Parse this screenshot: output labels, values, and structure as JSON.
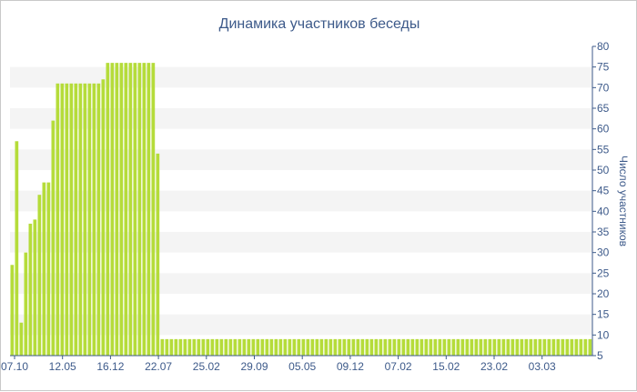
{
  "chart_data": {
    "type": "bar",
    "title": "Динамика участников беседы",
    "ylabel": "Число участников",
    "xlabel": "",
    "ylim": [
      5,
      80
    ],
    "yticks": [
      5,
      10,
      15,
      20,
      25,
      30,
      35,
      40,
      45,
      50,
      55,
      60,
      65,
      70,
      75,
      80
    ],
    "xtick_labels": [
      "07.10",
      "12.05",
      "16.12",
      "22.07",
      "25.02",
      "29.09",
      "05.05",
      "09.12",
      "07.02",
      "15.02",
      "23.02",
      "03.03"
    ],
    "grid": "horizontal bands",
    "colors": {
      "bar": "#b5dc3a",
      "band": "#f4f4f4",
      "axis": "#3d5a8a",
      "text": "#3d5a8a"
    },
    "values": [
      27,
      57,
      13,
      30,
      37,
      38,
      44,
      47,
      47,
      62,
      71,
      71,
      71,
      71,
      71,
      71,
      71,
      71,
      71,
      71,
      72,
      76,
      76,
      76,
      76,
      76,
      76,
      76,
      76,
      76,
      76,
      76,
      54,
      9,
      9,
      9,
      9,
      9,
      9,
      9,
      9,
      9,
      9,
      9,
      9,
      9,
      9,
      9,
      9,
      9,
      9,
      9,
      9,
      9,
      9,
      9,
      9,
      9,
      9,
      9,
      9,
      9,
      9,
      9,
      9,
      9,
      9,
      9,
      9,
      9,
      9,
      9,
      9,
      9,
      9,
      9,
      9,
      9,
      9,
      9,
      9,
      9,
      9,
      9,
      9,
      9,
      9,
      9,
      9,
      9,
      9,
      9,
      9,
      9,
      9,
      9,
      9,
      9,
      9,
      9,
      9,
      9,
      9,
      9,
      9,
      9,
      9,
      9,
      9,
      9,
      9,
      9,
      9,
      9,
      9,
      9,
      9,
      9,
      9,
      9,
      9,
      9,
      9,
      9,
      9,
      9,
      9,
      9
    ]
  }
}
